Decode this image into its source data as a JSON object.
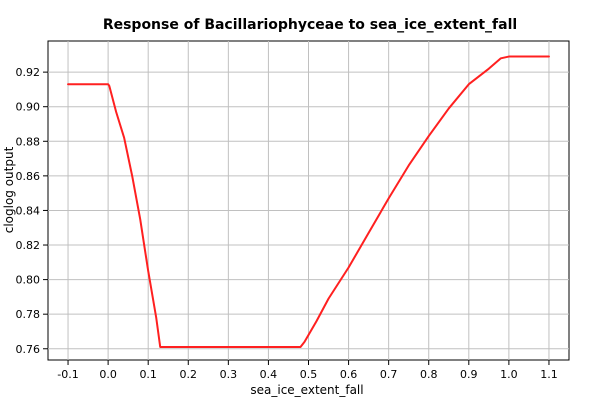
{
  "chart_data": {
    "type": "line",
    "title": "Response of Bacillariophyceae to sea_ice_extent_fall",
    "xlabel": "sea_ice_extent_fall",
    "ylabel": "cloglog output",
    "xlim": [
      -0.15,
      1.15
    ],
    "ylim": [
      0.7535,
      0.938
    ],
    "x_ticks": [
      -0.1,
      0.0,
      0.1,
      0.2,
      0.3,
      0.4,
      0.5,
      0.6,
      0.7,
      0.8,
      0.9,
      1.0,
      1.1
    ],
    "x_tick_labels": [
      "-0.1",
      "0.0",
      "0.1",
      "0.2",
      "0.3",
      "0.4",
      "0.5",
      "0.6",
      "0.7",
      "0.8",
      "0.9",
      "1.0",
      "1.1"
    ],
    "y_ticks": [
      0.76,
      0.78,
      0.8,
      0.82,
      0.84,
      0.86,
      0.88,
      0.9,
      0.92
    ],
    "y_tick_labels": [
      "0.76",
      "0.78",
      "0.80",
      "0.82",
      "0.84",
      "0.86",
      "0.88",
      "0.90",
      "0.92"
    ],
    "grid": true,
    "series": [
      {
        "color": "#ff2020",
        "x": [
          -0.1,
          0.0,
          0.003,
          0.02,
          0.04,
          0.06,
          0.08,
          0.1,
          0.12,
          0.13,
          0.2,
          0.3,
          0.4,
          0.48,
          0.49,
          0.52,
          0.55,
          0.6,
          0.65,
          0.7,
          0.75,
          0.8,
          0.85,
          0.9,
          0.95,
          0.98,
          1.0,
          1.1
        ],
        "y": [
          0.913,
          0.913,
          0.912,
          0.897,
          0.882,
          0.86,
          0.835,
          0.805,
          0.778,
          0.761,
          0.761,
          0.761,
          0.761,
          0.761,
          0.764,
          0.776,
          0.789,
          0.807,
          0.827,
          0.847,
          0.866,
          0.883,
          0.899,
          0.913,
          0.922,
          0.928,
          0.929,
          0.929
        ]
      }
    ]
  }
}
